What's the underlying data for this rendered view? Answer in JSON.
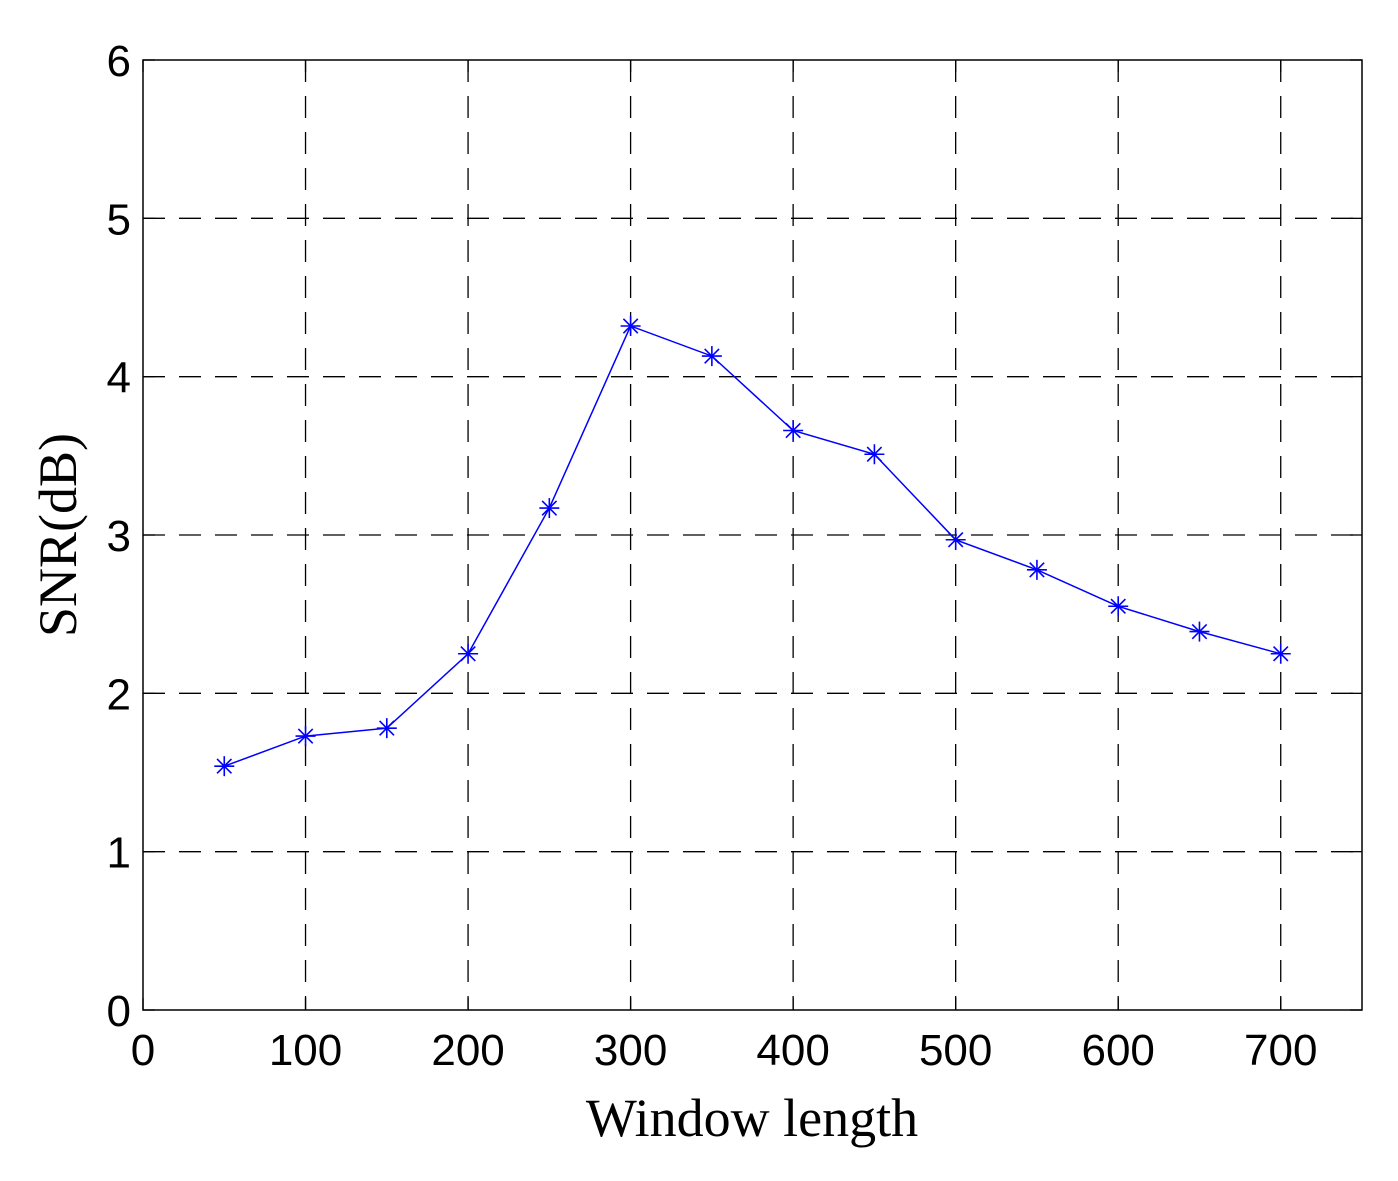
{
  "chart_data": {
    "type": "line",
    "title": "",
    "xlabel": "Window length",
    "ylabel": "SNR(dB)",
    "xlim": [
      0,
      750
    ],
    "ylim": [
      0,
      6
    ],
    "xticks": [
      0,
      100,
      200,
      300,
      400,
      500,
      600,
      700
    ],
    "yticks": [
      0,
      1,
      2,
      3,
      4,
      5,
      6
    ],
    "grid": true,
    "grid_style": "dashed",
    "marker": "asterisk",
    "series": [
      {
        "name": "",
        "color": "#0000ff",
        "x": [
          50,
          100,
          150,
          200,
          250,
          300,
          350,
          400,
          450,
          500,
          550,
          600,
          650,
          700
        ],
        "y": [
          1.54,
          1.73,
          1.78,
          2.25,
          3.17,
          4.32,
          4.13,
          3.66,
          3.51,
          2.97,
          2.78,
          2.55,
          2.39,
          2.25
        ]
      }
    ]
  }
}
